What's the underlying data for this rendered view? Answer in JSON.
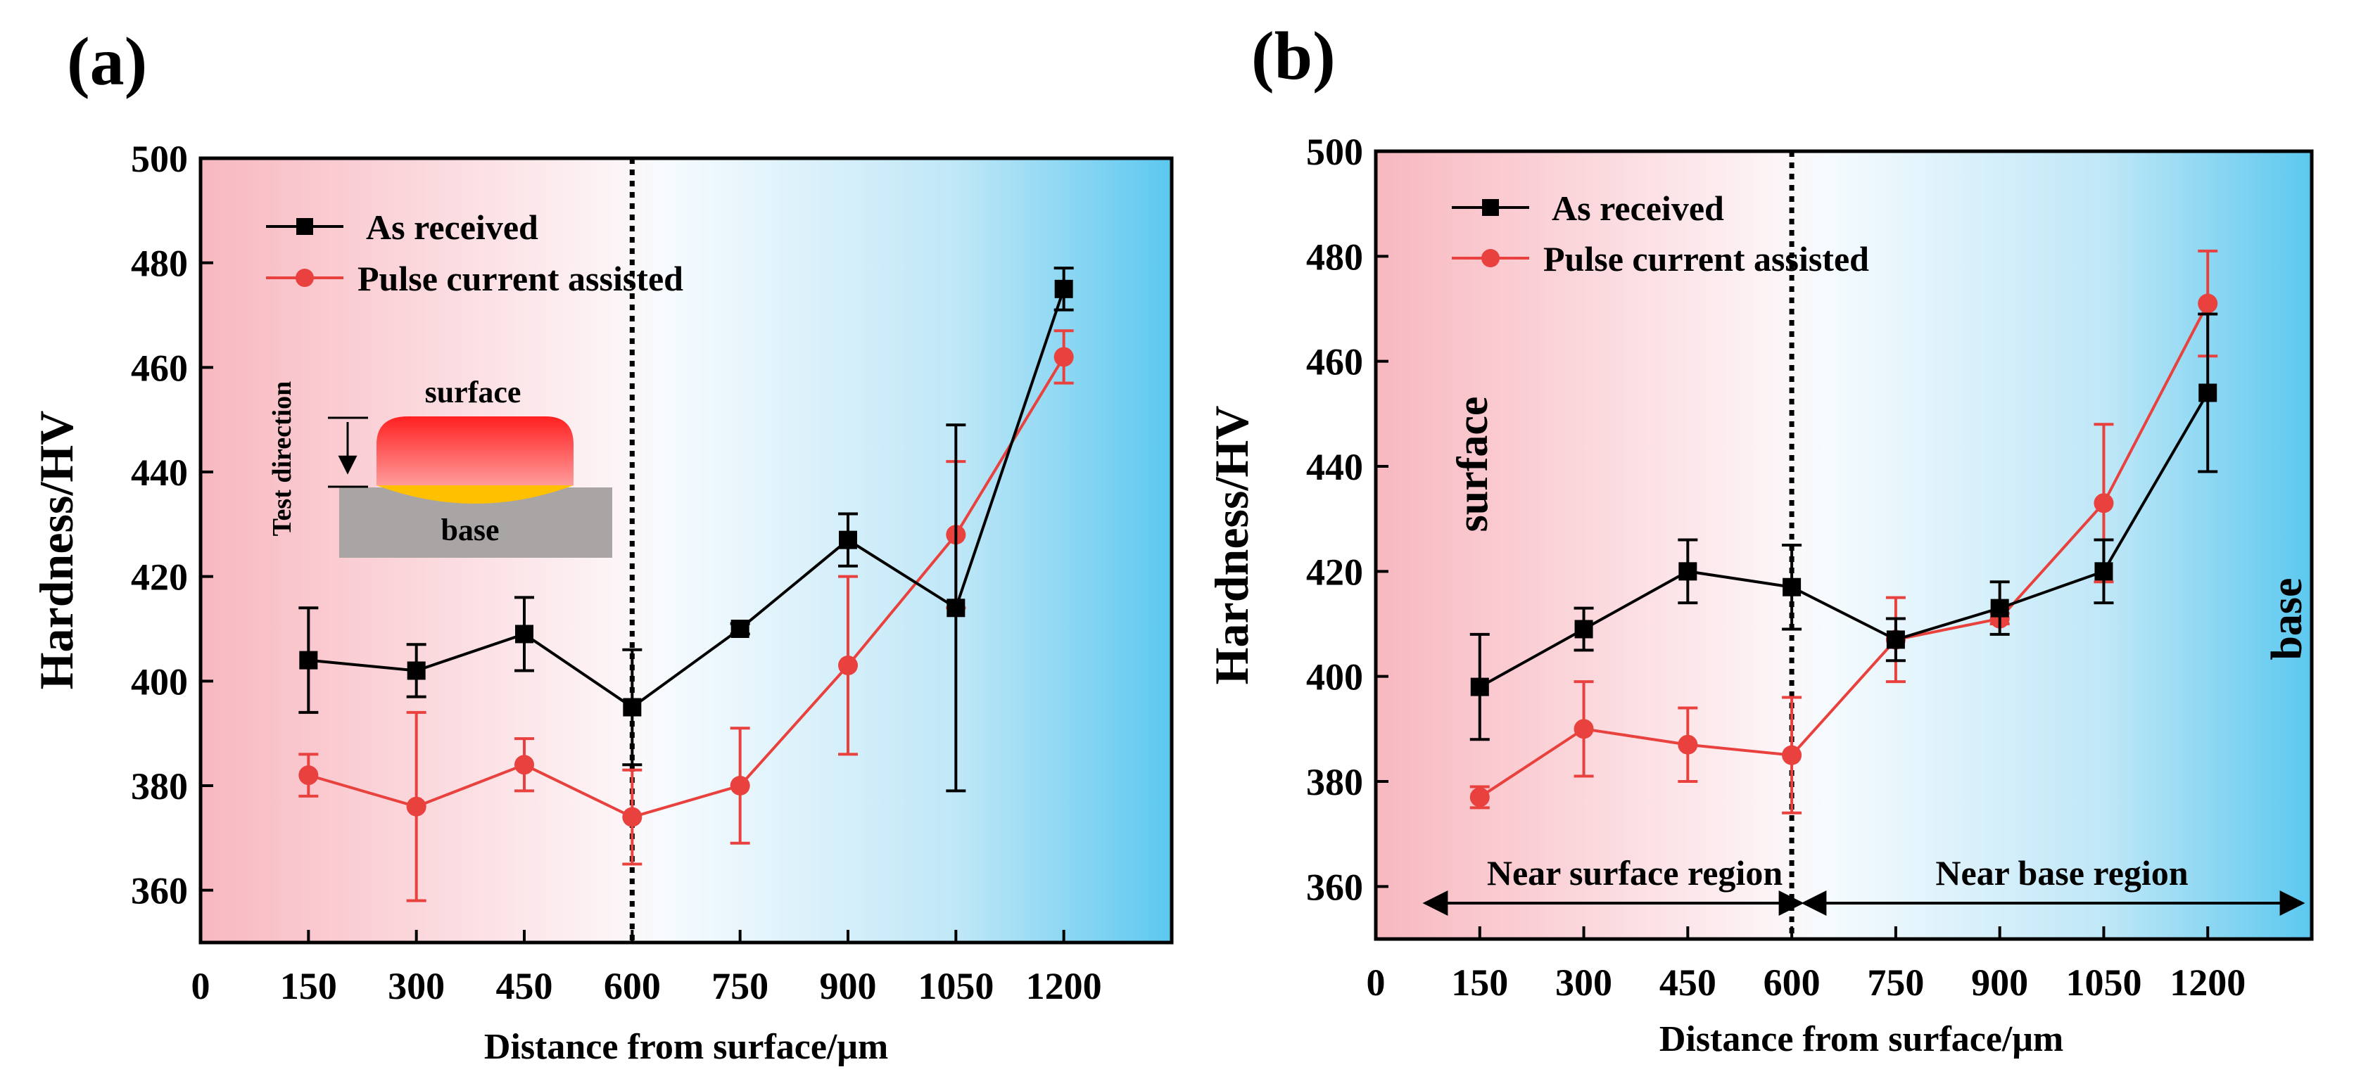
{
  "chart_data": [
    {
      "panel_label": "(a)",
      "type": "line",
      "xlabel": "Distance from surface/μm",
      "ylabel": "Hardness/HV",
      "xlim": [
        0,
        1350
      ],
      "ylim": [
        350,
        500
      ],
      "xticks": [
        0,
        150,
        300,
        450,
        600,
        750,
        900,
        1050,
        1200
      ],
      "yticks": [
        360,
        380,
        400,
        420,
        440,
        460,
        480,
        500
      ],
      "divider_x": 600,
      "legend": [
        "As received",
        "Pulse current assisted"
      ],
      "legend_position": "top-left",
      "series": [
        {
          "name": "As received",
          "color": "#000000",
          "marker": "square",
          "x": [
            150,
            300,
            450,
            600,
            750,
            900,
            1050,
            1200
          ],
          "y": [
            404,
            402,
            409,
            395,
            410,
            427,
            414,
            475
          ],
          "err": [
            10,
            5,
            7,
            11,
            1,
            5,
            35,
            4
          ]
        },
        {
          "name": "Pulse current assisted",
          "color": "#e8413e",
          "marker": "circle",
          "x": [
            150,
            300,
            450,
            600,
            750,
            900,
            1050,
            1200
          ],
          "y": [
            382,
            376,
            384,
            374,
            380,
            403,
            428,
            462
          ],
          "err": [
            4,
            18,
            5,
            9,
            11,
            17,
            14,
            5
          ]
        }
      ],
      "inset": {
        "top_label": "surface",
        "bottom_label": "base",
        "arrow_label": "Test direction",
        "colors": {
          "surface_top": "#ff2020",
          "surface_bottom": "#ff9b9b",
          "interface": "#ffc000",
          "base": "#a9a5a5"
        }
      }
    },
    {
      "panel_label": "(b)",
      "type": "line",
      "xlabel": "Distance from surface/μm",
      "ylabel": "Hardness/HV",
      "xlim": [
        0,
        1350
      ],
      "ylim": [
        350,
        500
      ],
      "xticks": [
        0,
        150,
        300,
        450,
        600,
        750,
        900,
        1050,
        1200
      ],
      "yticks": [
        360,
        380,
        400,
        420,
        440,
        460,
        480,
        500
      ],
      "divider_x": 600,
      "legend": [
        "As received",
        "Pulse current assisted"
      ],
      "legend_position": "top-left",
      "side_labels": {
        "left": "surface",
        "right": "base"
      },
      "regions": [
        {
          "label": "Near surface region",
          "from": 75,
          "to": 600
        },
        {
          "label": "Near base region",
          "from": 600,
          "to": 1320
        }
      ],
      "series": [
        {
          "name": "As received",
          "color": "#000000",
          "marker": "square",
          "x": [
            150,
            300,
            450,
            600,
            750,
            900,
            1050,
            1200
          ],
          "y": [
            398,
            409,
            420,
            417,
            407,
            413,
            420,
            454
          ],
          "err": [
            10,
            4,
            6,
            8,
            4,
            5,
            6,
            15
          ]
        },
        {
          "name": "Pulse current assisted",
          "color": "#e8413e",
          "marker": "circle",
          "x": [
            150,
            300,
            450,
            600,
            750,
            900,
            1050,
            1200
          ],
          "y": [
            377,
            390,
            387,
            385,
            407,
            411,
            433,
            471
          ],
          "err": [
            2,
            9,
            7,
            11,
            8,
            1,
            15,
            10
          ]
        }
      ]
    }
  ]
}
